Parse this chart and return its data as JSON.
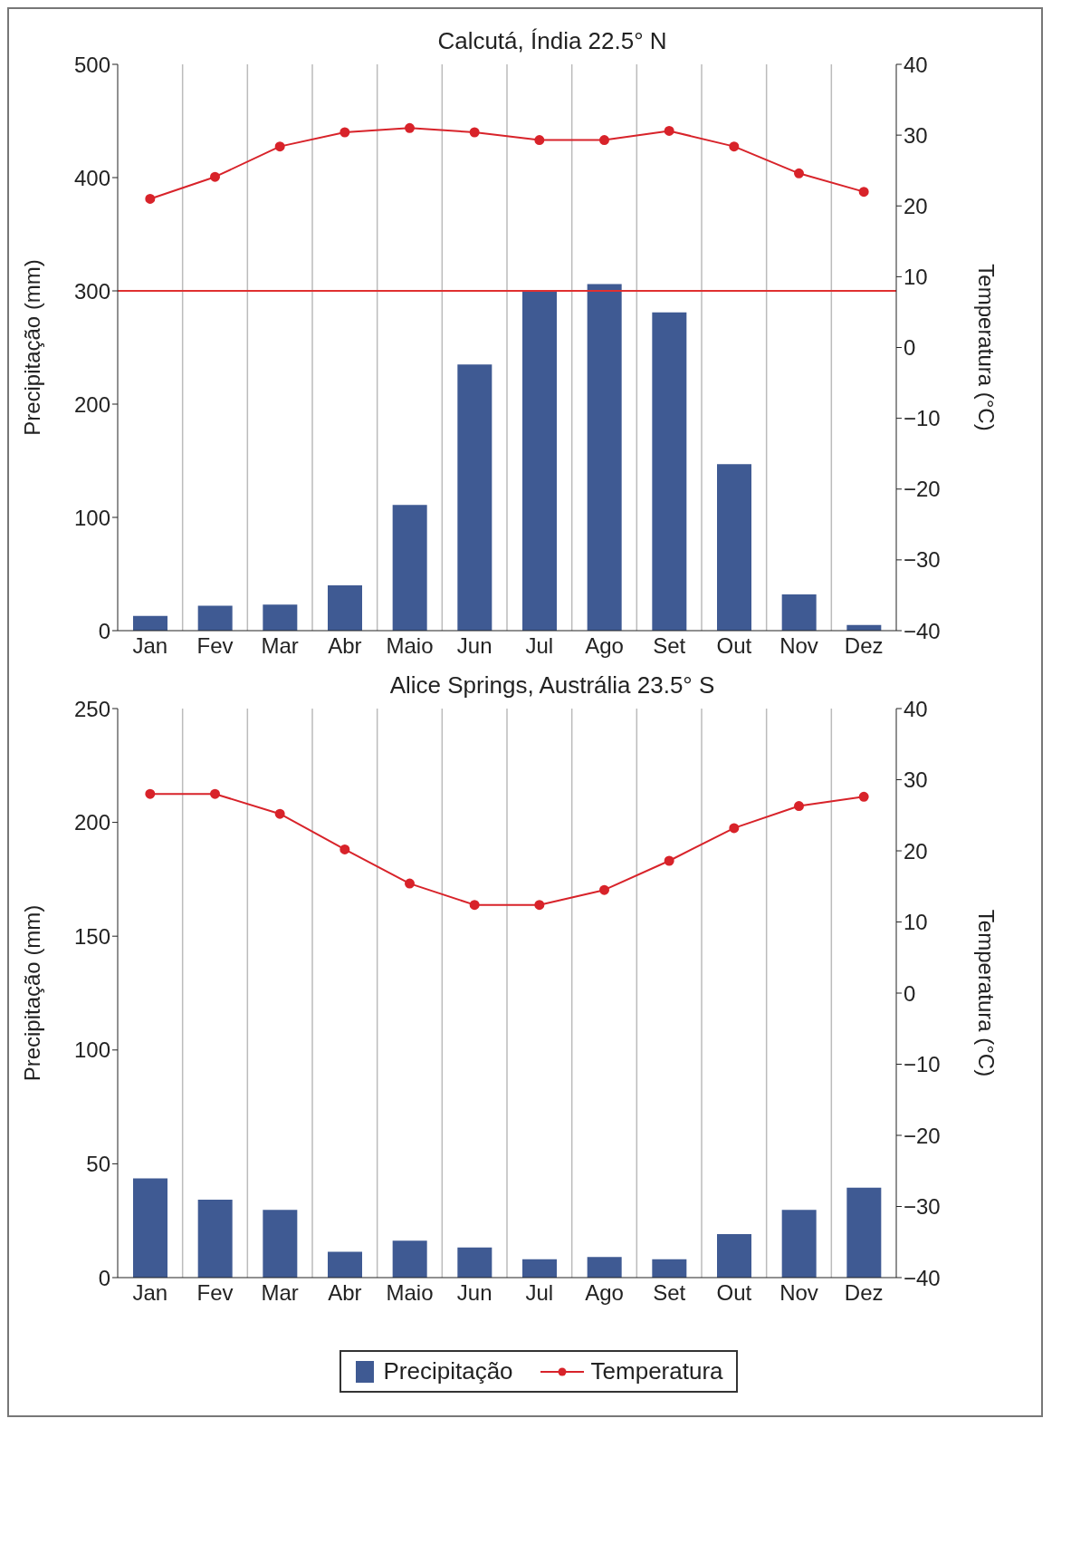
{
  "chart_data": [
    {
      "type": "bar",
      "title": "Calcutá, Índia 22.5° N",
      "ylabel": "Precipitação (mm)",
      "y2label": "Temperatura (°C)",
      "categories": [
        "Jan",
        "Fev",
        "Mar",
        "Abr",
        "Maio",
        "Jun",
        "Jul",
        "Ago",
        "Set",
        "Out",
        "Nov",
        "Dez"
      ],
      "series": [
        {
          "color": "#3f5a93",
          "values": [
            13,
            22,
            23,
            40,
            111,
            235,
            300,
            306,
            281,
            147,
            32,
            5
          ]
        },
        {
          "type": "line",
          "axis": "y2",
          "color": "#d8232a",
          "values": [
            21,
            24.1,
            28.4,
            30.4,
            31,
            30.4,
            29.3,
            29.3,
            30.6,
            28.4,
            24.6,
            22
          ]
        }
      ],
      "ylim": [
        0,
        500
      ],
      "yticks": [
        0,
        100,
        200,
        300,
        400,
        500
      ],
      "y2lim": [
        -40,
        40
      ],
      "y2ticks": [
        {
          "value": -40,
          "label": "−40"
        },
        {
          "value": -30,
          "label": "−30"
        },
        {
          "value": -20,
          "label": "−20"
        },
        {
          "value": -10,
          "label": "−10"
        },
        0,
        10,
        20,
        30,
        40
      ],
      "ref_lines": [
        {
          "axis": "y",
          "value": 300,
          "color": "#e03030"
        }
      ],
      "grid": "x",
      "marker": "circle",
      "line_style": "solid",
      "legend": false
    },
    {
      "type": "bar",
      "title": "Alice Springs, Austrália 23.5° S",
      "ylabel": "Precipitação (mm)",
      "y2label": "Temperatura (°C)",
      "categories": [
        "Jan",
        "Fev",
        "Mar",
        "Abr",
        "Maio",
        "Jun",
        "Jul",
        "Ago",
        "Set",
        "Out",
        "Nov",
        "Dez"
      ],
      "series": [
        {
          "name": "Precipitação",
          "color": "#3f5a93",
          "values": [
            43.6,
            34.2,
            29.8,
            11.3,
            16.2,
            13.2,
            8.1,
            9.1,
            8.1,
            19.1,
            29.8,
            39.5
          ]
        },
        {
          "type": "line",
          "axis": "y2",
          "name": "Temperatura",
          "color": "#d8232a",
          "values": [
            28,
            28,
            25.2,
            20.2,
            15.4,
            12.4,
            12.4,
            14.5,
            18.6,
            23.2,
            26.3,
            27.6
          ]
        }
      ],
      "ylim": [
        0,
        250
      ],
      "yticks": [
        0,
        50,
        100,
        150,
        200,
        250
      ],
      "y2lim": [
        -40,
        40
      ],
      "y2ticks": [
        {
          "value": -40,
          "label": "−40"
        },
        {
          "value": -30,
          "label": "−30"
        },
        {
          "value": -20,
          "label": "−20"
        },
        {
          "value": -10,
          "label": "−10"
        },
        0,
        10,
        20,
        30,
        40
      ],
      "grid": "x",
      "marker": "circle",
      "line_style": "solid",
      "legend": "bottom"
    }
  ]
}
